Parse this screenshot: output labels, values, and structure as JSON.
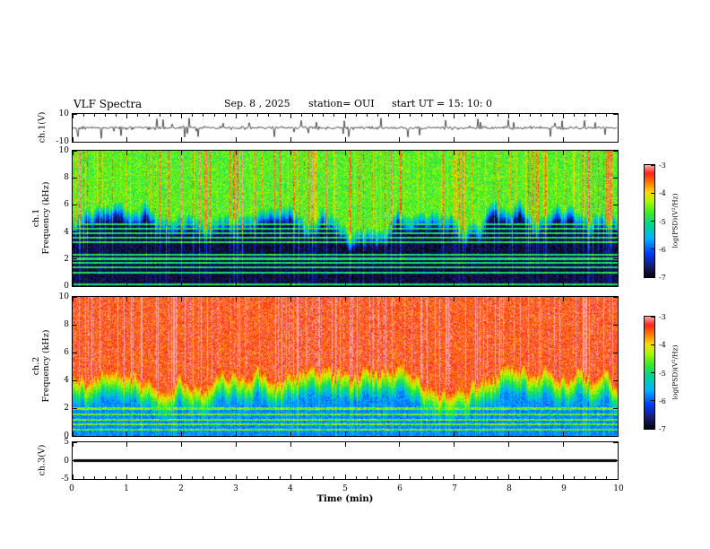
{
  "header": {
    "title": "VLF Spectra",
    "date": "Sep. 8  , 2025",
    "station": "station= OUI",
    "start_ut": "start UT  =   15: 10: 0"
  },
  "panels": {
    "ch1_voltage": {
      "ylabel": "ch.1(V)",
      "yticks": [
        "10",
        "-10"
      ]
    },
    "ch1_spectrogram": {
      "ylabel_line1": "ch.1",
      "ylabel_line2": "Frequency (kHz)",
      "yticks": [
        "10",
        "8",
        "6",
        "4",
        "2",
        "0"
      ]
    },
    "ch2_spectrogram": {
      "ylabel_line1": "ch.2",
      "ylabel_line2": "Frequency (kHz)",
      "yticks": [
        "10",
        "8",
        "6",
        "4",
        "2",
        "0"
      ]
    },
    "ch3_voltage": {
      "ylabel": "ch.3(V)",
      "yticks": [
        "5",
        "0",
        "-5"
      ]
    }
  },
  "xaxis": {
    "label": "Time (min)",
    "ticks": [
      "0",
      "1",
      "2",
      "3",
      "4",
      "5",
      "6",
      "7",
      "8",
      "9",
      "10"
    ]
  },
  "colorbar": {
    "label": "log(PSD)(V²/Hz)",
    "ticks": [
      "-3",
      "-4",
      "-5",
      "-6",
      "-7"
    ]
  },
  "chart_data": [
    {
      "id": "ch1_waveform",
      "type": "line",
      "title": "ch.1 voltage waveform",
      "xlabel": "Time (min)",
      "ylabel": "ch.1(V)",
      "xlim": [
        0,
        10
      ],
      "ylim": [
        -10,
        10
      ],
      "description": "Continuous broadband noise trace centered on 0 V with ~1.5 V envelope and frequent impulsive sferic spikes reaching about plus/minus 8 V across the full 10 minutes",
      "noise_v": 1.1,
      "spike_rate": 0.06,
      "spike_v": 7
    },
    {
      "id": "ch1_spectrogram",
      "type": "heatmap",
      "title": "ch.1 VLF spectrogram",
      "xlabel": "Time (min)",
      "ylabel": "Frequency (kHz)",
      "xlim": [
        0,
        10
      ],
      "ylim": [
        0,
        10
      ],
      "zlabel": "log(PSD)(V²/Hz)",
      "zlim": [
        -7,
        -3
      ],
      "description": "Green-yellow band (PSD ~ -4.5) above a fluctuating cutoff near 5 kHz with dense 1-2 s vertical sferic streaks reaching -3 (red); dark blue/black background (~ -6.8) below 4 kHz crossed by narrow cyan horizontal interference lines",
      "band_psd": -4.6,
      "background_psd": -6.8,
      "slope": 1.7,
      "cutoff_khz_mean": 5.2,
      "cutoff_khz_var": 1.3,
      "line_freqs_khz": [
        0.15,
        1.0,
        1.4,
        1.75,
        2.05,
        2.35,
        3.3,
        3.6,
        3.95,
        4.3,
        4.6
      ],
      "line_psd": -5.0,
      "streak_fraction": 0.3,
      "streak_max_boost": 2.7,
      "streak_floor": 0.25
    },
    {
      "id": "ch2_spectrogram",
      "type": "heatmap",
      "title": "ch.2 VLF spectrogram",
      "xlabel": "Time (min)",
      "ylabel": "Frequency (kHz)",
      "xlim": [
        0,
        10
      ],
      "ylim": [
        0,
        10
      ],
      "zlabel": "log(PSD)(V²/Hz)",
      "zlim": [
        -7,
        -3
      ],
      "description": "Saturated red-orange (PSD ~ -3.4) above ~4.5 kHz, yellow-green transition along a fluctuating cutoff near 4 kHz, cyan/blue region with strong vertical streaking below 3 kHz and bright horizontal lines under 2 kHz",
      "band_psd": -3.4,
      "background_psd": -5.8,
      "slope": 1.1,
      "cutoff_khz_mean": 4.3,
      "cutoff_khz_var": 1.1,
      "line_freqs_khz": [
        0.5,
        0.85,
        1.2,
        1.6,
        2.0
      ],
      "line_psd": -4.6,
      "streak_fraction": 0.35,
      "streak_max_boost": 1.6,
      "streak_floor": 0.45
    },
    {
      "id": "ch3_waveform",
      "type": "line",
      "title": "ch.3 voltage waveform",
      "xlabel": "Time (min)",
      "ylabel": "ch.3(V)",
      "xlim": [
        0,
        10
      ],
      "ylim": [
        -5,
        5
      ],
      "flat_value": 0,
      "description": "Flat thick black trace at 0 V for the entire interval (no signal on channel 3)"
    }
  ]
}
